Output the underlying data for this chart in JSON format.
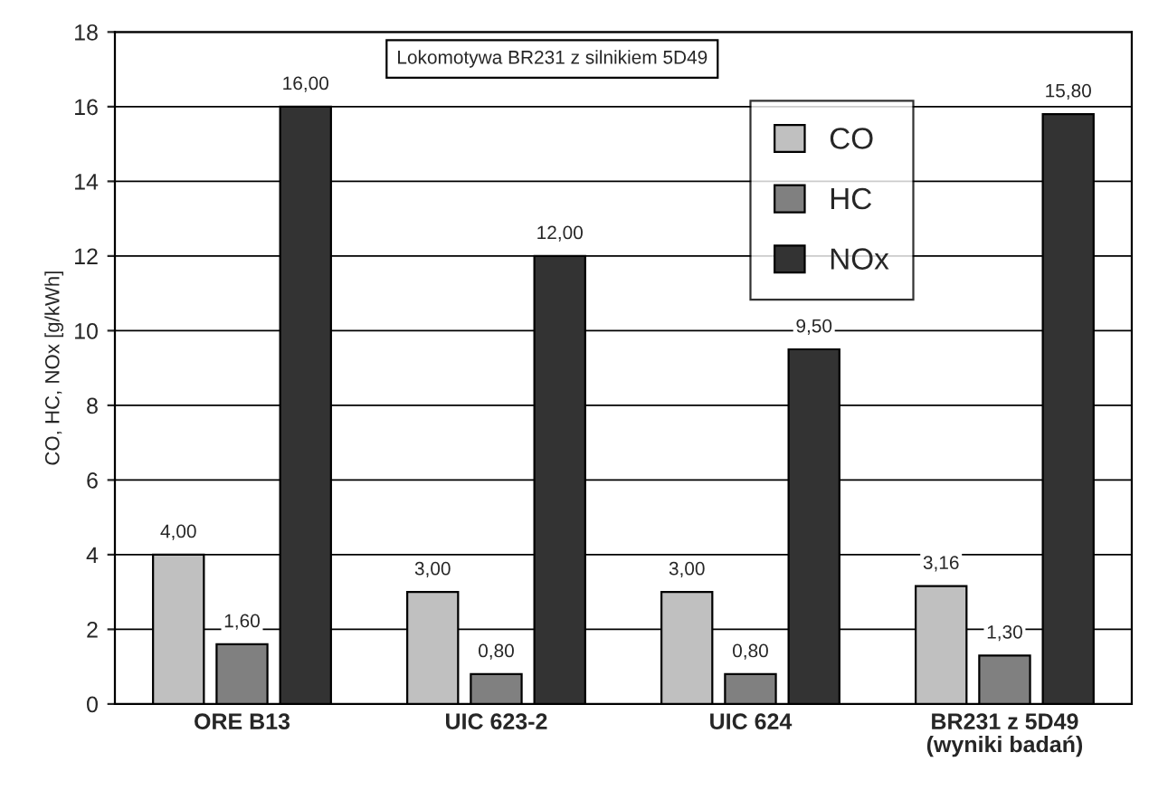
{
  "chart_data": {
    "type": "bar",
    "title": "Lokomotywa BR231 z silnikiem 5D49",
    "ylabel": "CO, HC, NOx [g/kWh]",
    "categories": [
      "ORE B13",
      "UIC 623-2",
      "UIC 624",
      "BR231 z 5D49\n(wyniki badań)"
    ],
    "series": [
      {
        "name": "CO",
        "color": "#c0c0c0",
        "values": [
          4.0,
          3.0,
          3.0,
          3.16
        ],
        "value_labels": [
          "4,00",
          "3,00",
          "3,00",
          "3,16"
        ]
      },
      {
        "name": "HC",
        "color": "#808080",
        "values": [
          1.6,
          0.8,
          0.8,
          1.3
        ],
        "value_labels": [
          "1,60",
          "0,80",
          "0,80",
          "1,30"
        ]
      },
      {
        "name": "NOx",
        "color": "#333333",
        "values": [
          16.0,
          12.0,
          9.5,
          15.8
        ],
        "value_labels": [
          "16,00",
          "12,00",
          "9,50",
          "15,80"
        ]
      }
    ],
    "ylim": [
      0,
      18
    ],
    "yticks": [
      0,
      2,
      4,
      6,
      8,
      10,
      12,
      14,
      16,
      18
    ],
    "grid": "y",
    "legend": "top right"
  }
}
